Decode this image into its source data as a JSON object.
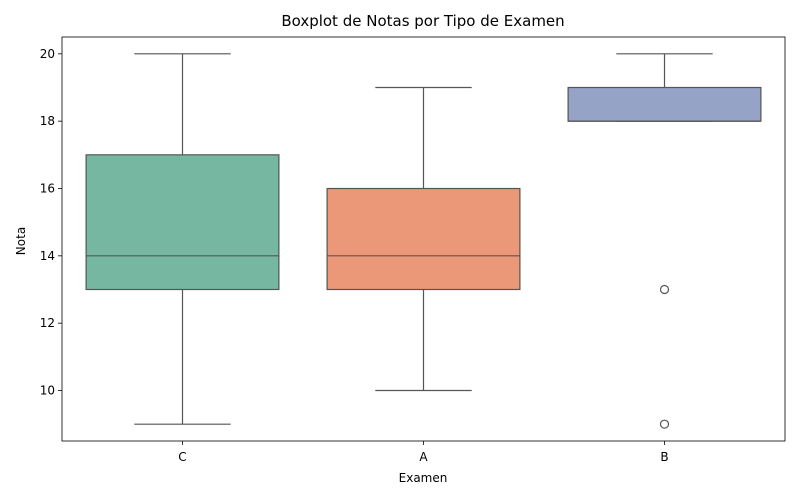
{
  "chart_data": {
    "type": "boxplot",
    "title": "Boxplot de Notas por Tipo de Examen",
    "xlabel": "Examen",
    "ylabel": "Nota",
    "ylim": [
      8.5,
      20.5
    ],
    "yticks": [
      10,
      12,
      14,
      16,
      18,
      20
    ],
    "ytick_labels": [
      "10",
      "12",
      "14",
      "16",
      "18",
      "20"
    ],
    "grid": false,
    "categories": [
      "C",
      "A",
      "B"
    ],
    "boxes": [
      {
        "category": "C",
        "whisker_low": 9,
        "q1": 13,
        "median": 14,
        "q3": 17,
        "whisker_high": 20,
        "outliers": [],
        "color": "#76b7a2"
      },
      {
        "category": "A",
        "whisker_low": 10,
        "q1": 13,
        "median": 14,
        "q3": 16,
        "whisker_high": 19,
        "outliers": [],
        "color": "#ea9877"
      },
      {
        "category": "B",
        "whisker_low": 18,
        "q1": 18,
        "median": 18,
        "q3": 19,
        "whisker_high": 20,
        "outliers": [
          13,
          9
        ],
        "color": "#94a3c6"
      }
    ]
  }
}
